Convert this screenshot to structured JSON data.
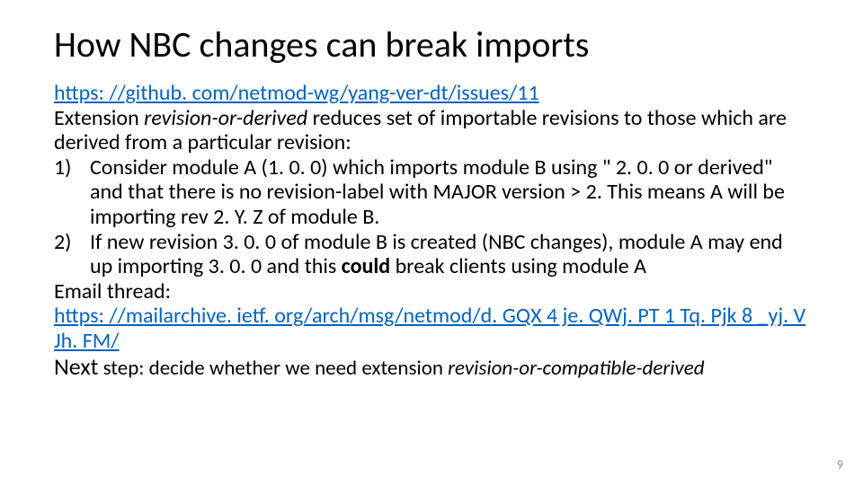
{
  "colors": {
    "background": "#ffffff",
    "text": "#000000",
    "link": "#0563c1",
    "pagenum": "#8c8c8c"
  },
  "typography": {
    "family": "Calibri",
    "title_fontsize_pt": 40,
    "body_fontsize_pt": 24,
    "title_weight": 400,
    "body_weight": 400
  },
  "title": "How NBC changes can break imports",
  "link1": "https: //github. com/netmod-wg/yang-ver-dt/issues/11",
  "ext_prefix": "Extension ",
  "ext_term": "revision-or-derived",
  "ext_suffix": " reduces set of importable revisions to those which are derived from a particular revision:",
  "items": [
    {
      "num": "1)",
      "text": "Consider module A (1. 0. 0) which imports module B using \" 2. 0. 0 or derived\" and that there is no revision-label with MAJOR version > 2. This means A will be importing rev 2. Y. Z of module B."
    },
    {
      "num": "2)",
      "pre": "If new revision 3. 0. 0 of module B is created (NBC changes), module A may end up importing 3. 0. 0 and this ",
      "bold": "could",
      "post": " break clients using module A"
    }
  ],
  "email_label": "Email thread:",
  "link2": "https: //mailarchive. ietf. org/arch/msg/netmod/d. GQX 4 je. QWj. PT 1 Tq. Pjk 8 _yj. VJh. FM/",
  "next_lead": "Next",
  "next_prefix": " step: decide whether we need extension ",
  "next_term": "revision-or-compatible-derived",
  "page_number": "9"
}
